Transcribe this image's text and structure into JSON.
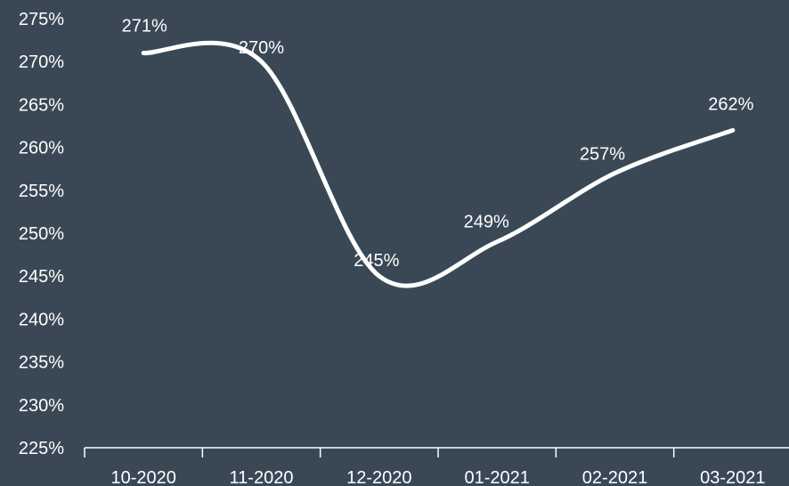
{
  "chart_data": {
    "type": "line",
    "categories": [
      "10-2020",
      "11-2020",
      "12-2020",
      "01-2021",
      "02-2021",
      "03-2021"
    ],
    "series": [
      {
        "values": [
          271,
          270,
          245,
          249,
          257,
          262
        ]
      }
    ],
    "data_labels": [
      "271%",
      "270%",
      "245%",
      "249%",
      "257%",
      "262%"
    ],
    "y_ticks": [
      "225%",
      "230%",
      "235%",
      "240%",
      "245%",
      "250%",
      "255%",
      "260%",
      "265%",
      "270%",
      "275%"
    ],
    "ylim": [
      225,
      275
    ],
    "smooth": true,
    "grid": false,
    "colors": {
      "background": "#3a4856",
      "line": "#ffffff",
      "text": "#ffffff"
    }
  }
}
